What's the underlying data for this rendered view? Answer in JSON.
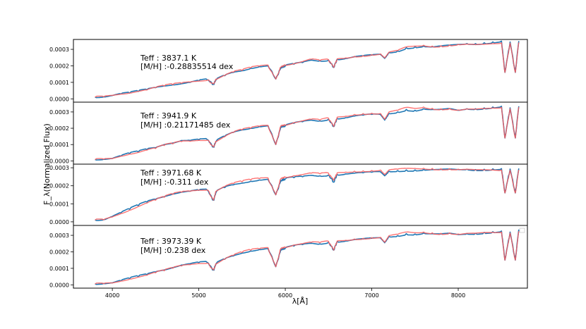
{
  "chart_data": {
    "type": "line",
    "xlabel": "λ[Å]",
    "ylabel": "F_λ(Normalized Flux)",
    "xlim": [
      3550,
      8800
    ],
    "xticks": [
      4000,
      5000,
      6000,
      7000,
      8000
    ],
    "grid": false,
    "colors": {
      "series_1": "#1f77b4",
      "series_2": "#ff5a5a",
      "axes": "#000000",
      "background": "#ffffff"
    },
    "panels": [
      {
        "annotation_lines": [
          "Teff : 3837.1 K",
          "[M/H] :-0.28835514 dex"
        ],
        "ylim": [
          -2e-05,
          0.00036
        ],
        "yticks": [
          "0.0000",
          "0.0001",
          "0.0002",
          "0.0003"
        ],
        "x": [
          3800,
          3900,
          4000,
          4100,
          4200,
          4300,
          4400,
          4500,
          4600,
          4700,
          4800,
          4900,
          5000,
          5100,
          5170,
          5200,
          5300,
          5400,
          5500,
          5600,
          5700,
          5800,
          5890,
          5950,
          6000,
          6100,
          6200,
          6300,
          6400,
          6500,
          6560,
          6600,
          6700,
          6800,
          6900,
          7000,
          7100,
          7150,
          7200,
          7300,
          7400,
          7500,
          7600,
          7700,
          7800,
          7900,
          8000,
          8100,
          8200,
          8300,
          8400,
          8500,
          8540,
          8600,
          8660,
          8700
        ],
        "series": [
          {
            "values": [
              1e-05,
              1.2e-05,
              2e-05,
              3e-05,
              3.5e-05,
              4.5e-05,
              5.5e-05,
              6.8e-05,
              7.8e-05,
              8.5e-05,
              9.2e-05,
              0.0001,
              0.00011,
              0.000115,
              9e-05,
              0.000115,
              0.00014,
              0.00016,
              0.00017,
              0.000185,
              0.000195,
              0.0002,
              0.00012,
              0.00019,
              0.0002,
              0.00021,
              0.00022,
              0.000235,
              0.00023,
              0.000235,
              0.00019,
              0.00024,
              0.000245,
              0.000255,
              0.00026,
              0.000265,
              0.00027,
              0.000245,
              0.00028,
              0.00029,
              0.00031,
              0.000315,
              0.00032,
              0.000315,
              0.00032,
              0.000325,
              0.00033,
              0.000335,
              0.000335,
              0.00034,
              0.000345,
              0.00035,
              0.00016,
              0.000345,
              0.00016,
              0.00035
            ]
          },
          {
            "values": [
              1e-05,
              1.3e-05,
              2.1e-05,
              2.9e-05,
              3.6e-05,
              4.6e-05,
              5.4e-05,
              6.7e-05,
              7.7e-05,
              8.6e-05,
              9.4e-05,
              0.000102,
              0.000108,
              0.000113,
              9e-05,
              0.000117,
              0.000142,
              0.000162,
              0.000172,
              0.000188,
              0.000198,
              0.000205,
              0.00012,
              0.000193,
              0.000205,
              0.000214,
              0.000226,
              0.00024,
              0.000232,
              0.000238,
              0.00019,
              0.000242,
              0.000248,
              0.000258,
              0.000262,
              0.000268,
              0.000272,
              0.000248,
              0.000283,
              0.000293,
              0.000315,
              0.00032,
              0.000325,
              0.00032,
              0.000322,
              0.000326,
              0.00033,
              0.000332,
              0.000328,
              0.00033,
              0.000335,
              0.00034,
              0.00016,
              0.000338,
              0.00016,
              0.000342
            ]
          }
        ]
      },
      {
        "annotation_lines": [
          "Teff : 3941.9 K",
          "[M/H] :0.21171485 dex"
        ],
        "ylim": [
          -2e-05,
          0.00036
        ],
        "yticks": [
          "0.0000",
          "0.0001",
          "0.0002",
          "0.0003"
        ],
        "x": [
          3800,
          3900,
          4000,
          4100,
          4200,
          4300,
          4400,
          4500,
          4600,
          4700,
          4800,
          4900,
          5000,
          5100,
          5170,
          5200,
          5300,
          5400,
          5500,
          5600,
          5700,
          5800,
          5890,
          5950,
          6000,
          6100,
          6200,
          6300,
          6400,
          6500,
          6560,
          6600,
          6700,
          6800,
          6900,
          7000,
          7100,
          7150,
          7200,
          7300,
          7400,
          7500,
          7600,
          7700,
          7800,
          7900,
          8000,
          8100,
          8200,
          8300,
          8400,
          8500,
          8540,
          8600,
          8660,
          8700
        ],
        "series": [
          {
            "values": [
              8e-06,
              1e-05,
              1.5e-05,
              3e-05,
              4.5e-05,
              5.5e-05,
              7e-05,
              8e-05,
              0.0001,
              0.00011,
              0.000125,
              0.000125,
              0.00013,
              0.00013,
              8.5e-05,
              0.00012,
              0.00015,
              0.000175,
              0.00019,
              0.0002,
              0.00021,
              0.000215,
              0.0001,
              0.00021,
              0.000215,
              0.00023,
              0.00024,
              0.00025,
              0.000245,
              0.000255,
              0.00021,
              0.00026,
              0.000265,
              0.000275,
              0.00028,
              0.000285,
              0.000285,
              0.00025,
              0.00029,
              0.0003,
              0.000315,
              0.00031,
              0.00032,
              0.000315,
              0.000315,
              0.00032,
              0.00031,
              0.00032,
              0.00032,
              0.000325,
              0.00033,
              0.000335,
              0.00014,
              0.000325,
              0.00014,
              0.000335
            ]
          },
          {
            "values": [
              8e-06,
              1e-05,
              1.4e-05,
              2.9e-05,
              4.2e-05,
              5.2e-05,
              6.6e-05,
              7.6e-05,
              9.4e-05,
              0.000104,
              0.000118,
              0.00012,
              0.000126,
              0.000127,
              8.5e-05,
              0.000118,
              0.000148,
              0.000174,
              0.00019,
              0.0002,
              0.000212,
              0.000218,
              0.0001,
              0.000215,
              0.00022,
              0.000235,
              0.000245,
              0.000255,
              0.00025,
              0.000262,
              0.00021,
              0.000268,
              0.000274,
              0.000285,
              0.00029,
              0.000292,
              0.00029,
              0.000255,
              0.0003,
              0.00031,
              0.000328,
              0.000322,
              0.00033,
              0.000322,
              0.00032,
              0.000322,
              0.000312,
              0.000318,
              0.000316,
              0.00032,
              0.000324,
              0.000328,
              0.00014,
              0.00032,
              0.00014,
              0.00033
            ]
          }
        ]
      },
      {
        "annotation_lines": [
          "Teff : 3971.68 K",
          "[M/H] :-0.311 dex"
        ],
        "ylim": [
          -2e-05,
          0.00032
        ],
        "yticks": [
          "0.0000",
          "0.0001",
          "0.0002",
          "0.0003"
        ],
        "x": [
          3800,
          3900,
          4000,
          4100,
          4200,
          4300,
          4400,
          4500,
          4600,
          4700,
          4800,
          4900,
          5000,
          5100,
          5170,
          5200,
          5300,
          5400,
          5500,
          5600,
          5700,
          5800,
          5890,
          5950,
          6000,
          6100,
          6200,
          6300,
          6400,
          6500,
          6560,
          6600,
          6700,
          6800,
          6900,
          7000,
          7100,
          7150,
          7200,
          7300,
          7400,
          7500,
          7600,
          7700,
          7800,
          7900,
          8000,
          8100,
          8200,
          8300,
          8400,
          8500,
          8540,
          8600,
          8660,
          8700
        ],
        "series": [
          {
            "values": [
              1e-05,
              1.2e-05,
              3e-05,
              5e-05,
              7e-05,
              9e-05,
              0.00011,
              0.000125,
              0.00014,
              0.000155,
              0.000165,
              0.00017,
              0.000175,
              0.000175,
              0.00012,
              0.000165,
              0.00019,
              0.000205,
              0.000215,
              0.000225,
              0.000232,
              0.000236,
              0.00015,
              0.00023,
              0.000238,
              0.000245,
              0.00025,
              0.000258,
              0.000255,
              0.00026,
              0.00022,
              0.000262,
              0.000266,
              0.00027,
              0.000272,
              0.000275,
              0.000278,
              0.000255,
              0.00028,
              0.000284,
              0.000288,
              0.000288,
              0.00029,
              0.00029,
              0.00029,
              0.000292,
              0.00029,
              0.000292,
              0.00029,
              0.000292,
              0.000294,
              0.000295,
              0.00016,
              0.000293,
              0.00016,
              0.000296
            ]
          },
          {
            "values": [
              1e-05,
              1.1e-05,
              2.7e-05,
              4.6e-05,
              6.5e-05,
              8.5e-05,
              0.000104,
              0.00012,
              0.000136,
              0.000152,
              0.000164,
              0.00017,
              0.000176,
              0.000177,
              0.00012,
              0.00017,
              0.000196,
              0.000212,
              0.000222,
              0.000232,
              0.00024,
              0.000244,
              0.00015,
              0.00024,
              0.000248,
              0.000256,
              0.000262,
              0.00027,
              0.000266,
              0.00027,
              0.00023,
              0.000272,
              0.000276,
              0.000281,
              0.000283,
              0.000285,
              0.000287,
              0.000262,
              0.000288,
              0.000292,
              0.000296,
              0.000296,
              0.000297,
              0.000296,
              0.000295,
              0.000295,
              0.000292,
              0.000292,
              0.000288,
              0.000288,
              0.000288,
              0.000288,
              0.00016,
              0.000286,
              0.00016,
              0.000288
            ]
          }
        ]
      },
      {
        "annotation_lines": [
          "Teff : 3973.39 K",
          "[M/H] :0.238 dex"
        ],
        "ylim": [
          -2e-05,
          0.00036
        ],
        "yticks": [
          "0.0000",
          "0.0001",
          "0.0002",
          "0.0003"
        ],
        "x": [
          3800,
          3900,
          4000,
          4100,
          4200,
          4300,
          4400,
          4500,
          4600,
          4700,
          4800,
          4900,
          5000,
          5100,
          5170,
          5200,
          5300,
          5400,
          5500,
          5600,
          5700,
          5800,
          5890,
          5950,
          6000,
          6100,
          6200,
          6300,
          6400,
          6500,
          6560,
          6600,
          6700,
          6800,
          6900,
          7000,
          7100,
          7150,
          7200,
          7300,
          7400,
          7500,
          7600,
          7700,
          7800,
          7900,
          8000,
          8100,
          8200,
          8300,
          8400,
          8500,
          8540,
          8600,
          8660,
          8700
        ],
        "series": [
          {
            "values": [
              5e-06,
              8e-06,
              1.2e-05,
              2.5e-05,
              3.8e-05,
              5e-05,
              6.2e-05,
              7.8e-05,
              9e-05,
              0.000105,
              0.00012,
              0.000128,
              0.000135,
              0.000135,
              9e-05,
              0.000128,
              0.000155,
              0.000175,
              0.000192,
              0.000205,
              0.000214,
              0.00022,
              0.00011,
              0.000215,
              0.000222,
              0.000235,
              0.000244,
              0.000252,
              0.000248,
              0.000258,
              0.00021,
              0.000262,
              0.000266,
              0.000274,
              0.000278,
              0.000282,
              0.000285,
              0.000255,
              0.000292,
              0.000298,
              0.00031,
              0.000308,
              0.000314,
              0.00031,
              0.000308,
              0.000312,
              0.000305,
              0.00031,
              0.000312,
              0.000318,
              0.000322,
              0.000326,
              0.00015,
              0.00032,
              0.00015,
              0.000335
            ]
          },
          {
            "values": [
              5e-06,
              7e-06,
              1.1e-05,
              2.3e-05,
              3.5e-05,
              4.7e-05,
              5.8e-05,
              7.3e-05,
              8.5e-05,
              0.0001,
              0.000114,
              0.000122,
              0.00013,
              0.000131,
              9e-05,
              0.000126,
              0.000156,
              0.000178,
              0.000196,
              0.00021,
              0.000218,
              0.000226,
              0.00011,
              0.000221,
              0.000228,
              0.000242,
              0.00025,
              0.000258,
              0.000255,
              0.000264,
              0.00021,
              0.000266,
              0.00027,
              0.000278,
              0.000282,
              0.000286,
              0.000288,
              0.000258,
              0.000298,
              0.000306,
              0.00032,
              0.000316,
              0.00032,
              0.000315,
              0.000312,
              0.000315,
              0.000308,
              0.000312,
              0.000312,
              0.000316,
              0.000318,
              0.00032,
              0.00015,
              0.000314,
              0.00015,
              0.000325
            ]
          }
        ]
      }
    ]
  }
}
